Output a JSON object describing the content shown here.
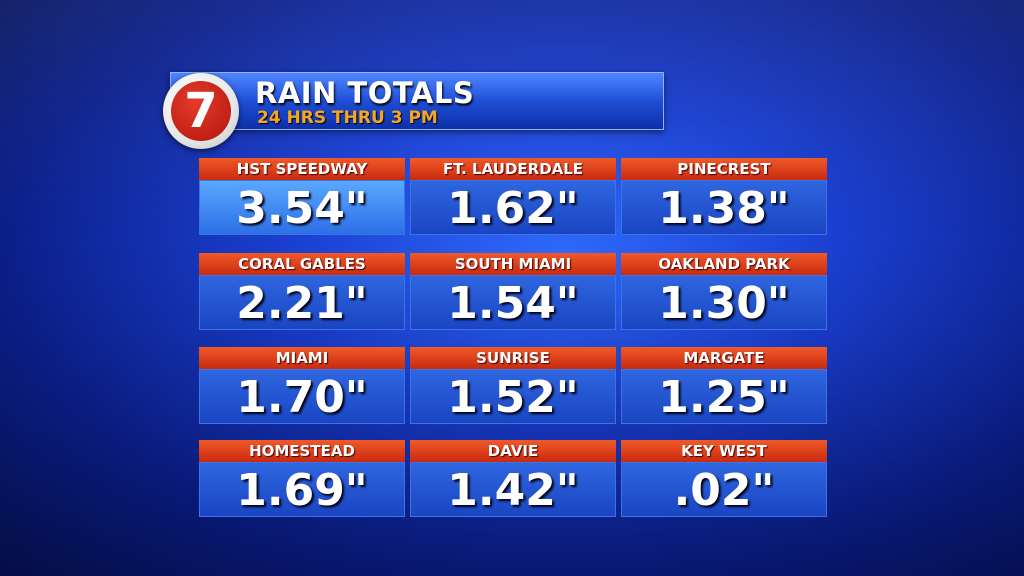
{
  "header": {
    "logo": "7",
    "title": "RAIN TOTALS",
    "subtitle": "24 HRS THRU 3 PM"
  },
  "cells": [
    {
      "name": "HST SPEEDWAY",
      "value": "3.54\""
    },
    {
      "name": "FT. LAUDERDALE",
      "value": "1.62\""
    },
    {
      "name": "PINECREST",
      "value": "1.38\""
    },
    {
      "name": "CORAL GABLES",
      "value": "2.21\""
    },
    {
      "name": "SOUTH MIAMI",
      "value": "1.54\""
    },
    {
      "name": "OAKLAND PARK",
      "value": "1.30\""
    },
    {
      "name": "MIAMI",
      "value": "1.70\""
    },
    {
      "name": "SUNRISE",
      "value": "1.52\""
    },
    {
      "name": "MARGATE",
      "value": "1.25\""
    },
    {
      "name": "HOMESTEAD",
      "value": "1.69\""
    },
    {
      "name": "DAVIE",
      "value": "1.42\""
    },
    {
      "name": "KEY WEST",
      "value": ".02\""
    }
  ]
}
